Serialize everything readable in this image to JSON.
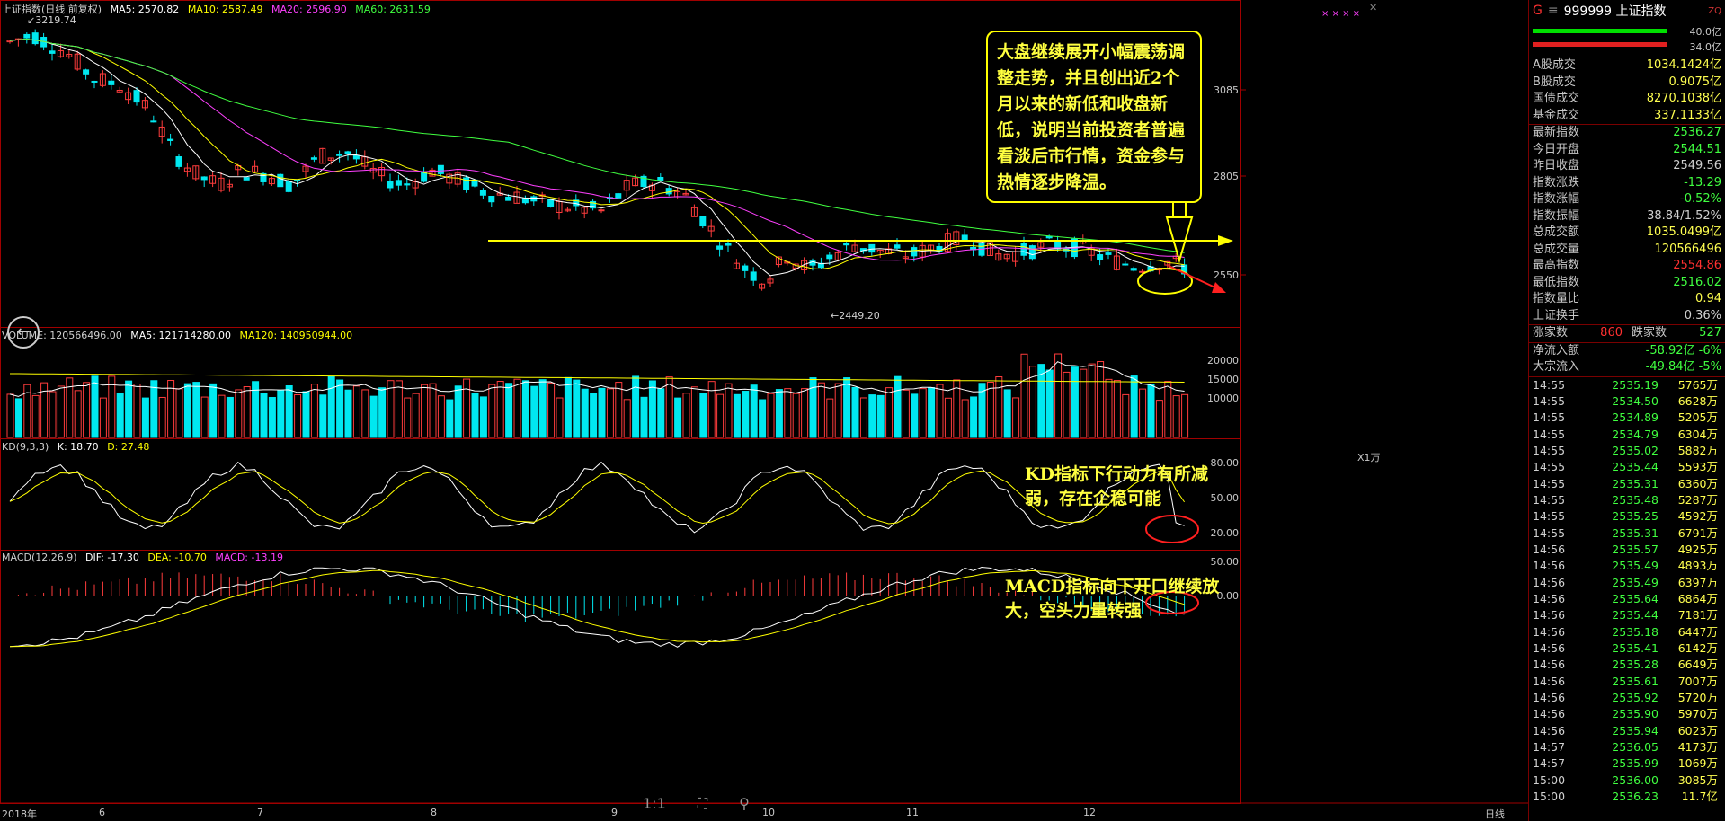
{
  "main_legend": {
    "title": "上证指数(日线 前复权)",
    "ma5": "MA5: 2570.82",
    "ma10": "MA10: 2587.49",
    "ma20": "MA20: 2596.90",
    "ma60": "MA60: 2631.59",
    "high_label": "3219.74",
    "low_label": "2449.20",
    "colors": {
      "ma5": "#ffffff",
      "ma10": "#ffff00",
      "ma20": "#ff40ff",
      "ma60": "#40ff40"
    }
  },
  "volume_legend": {
    "title": "VOLUME: 120566496.00",
    "ma5": "MA5: 121714280.00",
    "ma120": "MA120: 140950944.00",
    "unit": "X1万"
  },
  "kd_legend": {
    "title": "KD(9,3,3)",
    "k": "K: 18.70",
    "d": "D: 27.48"
  },
  "macd_legend": {
    "title": "MACD(12,26,9)",
    "dif": "DIF: -17.30",
    "dea": "DEA: -10.70",
    "macd": "MACD: -13.19"
  },
  "price_axis": [
    "3085",
    "2805",
    "2550"
  ],
  "volume_axis": [
    "20000",
    "15000",
    "10000"
  ],
  "kd_axis": [
    "80.00",
    "50.00",
    "20.00"
  ],
  "macd_axis": [
    "50.00",
    "0.00"
  ],
  "x_axis": [
    "2018年",
    "6",
    "7",
    "8",
    "9",
    "10",
    "11",
    "12"
  ],
  "period_label": "日线",
  "annotations": {
    "main": "大盘继续展开小幅震荡调整走势，并且创出近2个月以来的新低和收盘新低，说明当前投资者普遍看淡后市行情，资金参与热情逐步降温。",
    "kd": "KD指标下行动力有所减弱，存在企稳可能",
    "macd": "MACD指标向下开口继续放大，空头力量转强"
  },
  "bottom_tools": {
    "ratio": "1:1"
  },
  "right_panel": {
    "header": {
      "flag": "G",
      "code": "999999 上证指数",
      "tag": "ZQ"
    },
    "bar_labels": [
      "40.0亿",
      "34.0亿"
    ],
    "turnover": [
      {
        "k": "A股成交",
        "v": "1034.1424亿"
      },
      {
        "k": "B股成交",
        "v": "0.9075亿"
      },
      {
        "k": "国债成交",
        "v": "8270.1038亿"
      },
      {
        "k": "基金成交",
        "v": "337.1133亿"
      }
    ],
    "quote": [
      {
        "k": "最新指数",
        "v": "2536.27",
        "c": "#40ff40"
      },
      {
        "k": "今日开盘",
        "v": "2544.51",
        "c": "#40ff40"
      },
      {
        "k": "昨日收盘",
        "v": "2549.56",
        "c": "#d0d0d0"
      },
      {
        "k": "指数涨跌",
        "v": "-13.29",
        "c": "#40ff40"
      },
      {
        "k": "指数涨幅",
        "v": "-0.52%",
        "c": "#40ff40"
      },
      {
        "k": "指数振幅",
        "v": "38.84/1.52%",
        "c": "#d0d0d0"
      },
      {
        "k": "总成交额",
        "v": "1035.0499亿",
        "c": "#ffff50"
      },
      {
        "k": "总成交量",
        "v": "120566496",
        "c": "#ffff50"
      },
      {
        "k": "最高指数",
        "v": "2554.86",
        "c": "#ff3030"
      },
      {
        "k": "最低指数",
        "v": "2516.02",
        "c": "#40ff40"
      },
      {
        "k": "指数量比",
        "v": "0.94",
        "c": "#ffff50"
      },
      {
        "k": "上证换手",
        "v": "0.36%",
        "c": "#d0d0d0"
      }
    ],
    "updown": {
      "up_k": "涨家数",
      "up_v": "860",
      "down_k": "跌家数",
      "down_v": "527"
    },
    "flows": [
      {
        "k": "净流入额",
        "v": "-58.92亿 -6%"
      },
      {
        "k": "大宗流入",
        "v": "-49.84亿 -5%"
      }
    ],
    "ticks": [
      {
        "t": "14:55",
        "p": "2535.19",
        "v": "5765万"
      },
      {
        "t": "14:55",
        "p": "2534.50",
        "v": "6628万"
      },
      {
        "t": "14:55",
        "p": "2534.89",
        "v": "5205万"
      },
      {
        "t": "14:55",
        "p": "2534.79",
        "v": "6304万"
      },
      {
        "t": "14:55",
        "p": "2535.02",
        "v": "5882万"
      },
      {
        "t": "14:55",
        "p": "2535.44",
        "v": "5593万"
      },
      {
        "t": "14:55",
        "p": "2535.31",
        "v": "6360万"
      },
      {
        "t": "14:55",
        "p": "2535.48",
        "v": "5287万"
      },
      {
        "t": "14:55",
        "p": "2535.25",
        "v": "4592万"
      },
      {
        "t": "14:55",
        "p": "2535.31",
        "v": "6791万"
      },
      {
        "t": "14:56",
        "p": "2535.57",
        "v": "4925万"
      },
      {
        "t": "14:56",
        "p": "2535.49",
        "v": "4893万"
      },
      {
        "t": "14:56",
        "p": "2535.49",
        "v": "6397万"
      },
      {
        "t": "14:56",
        "p": "2535.64",
        "v": "6864万"
      },
      {
        "t": "14:56",
        "p": "2535.44",
        "v": "7181万"
      },
      {
        "t": "14:56",
        "p": "2535.18",
        "v": "6447万"
      },
      {
        "t": "14:56",
        "p": "2535.41",
        "v": "6142万"
      },
      {
        "t": "14:56",
        "p": "2535.28",
        "v": "6649万"
      },
      {
        "t": "14:56",
        "p": "2535.61",
        "v": "7007万"
      },
      {
        "t": "14:56",
        "p": "2535.92",
        "v": "5720万"
      },
      {
        "t": "14:56",
        "p": "2535.90",
        "v": "5970万"
      },
      {
        "t": "14:56",
        "p": "2535.94",
        "v": "6023万"
      },
      {
        "t": "14:57",
        "p": "2536.05",
        "v": "4173万"
      },
      {
        "t": "14:57",
        "p": "2535.99",
        "v": "1069万"
      },
      {
        "t": "15:00",
        "p": "2536.00",
        "v": "3085万"
      },
      {
        "t": "15:00",
        "p": "2536.23",
        "v": "11.7亿"
      }
    ]
  }
}
